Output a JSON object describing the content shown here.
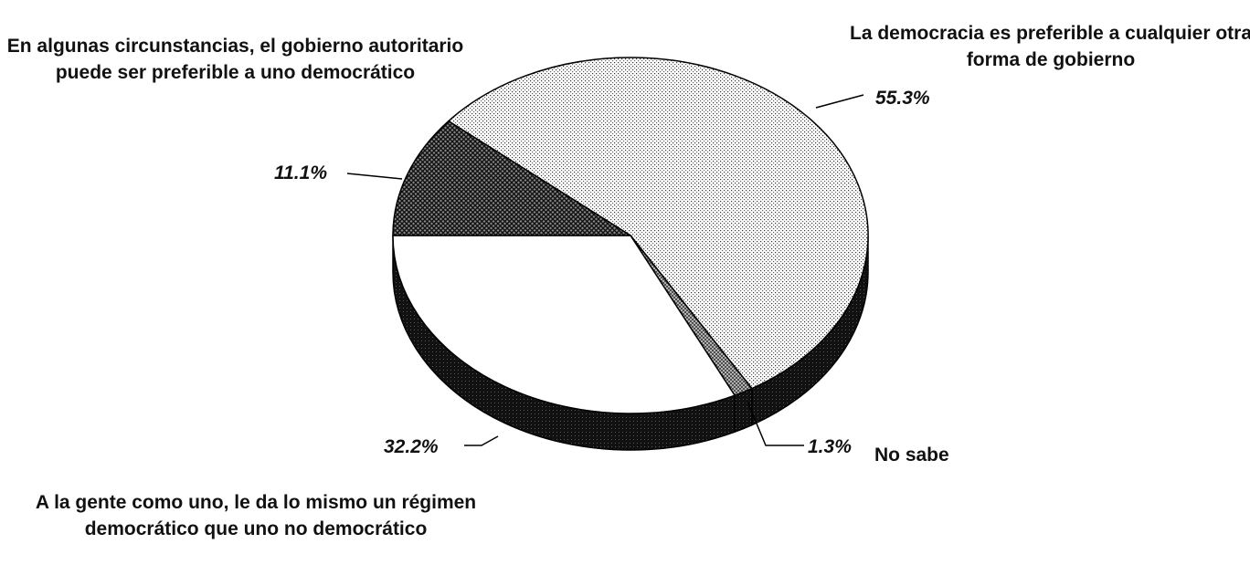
{
  "chart_data": {
    "type": "pie",
    "categories": [
      "La democracia es preferible a cualquier otra forma de gobierno",
      "No sabe",
      "A la gente como uno, le da lo mismo un régimen democrático que uno no democrático",
      "En algunas circunstancias, el gobierno autoritario puede ser preferible a uno democrático"
    ],
    "values": [
      55.3,
      1.3,
      32.2,
      11.1
    ],
    "value_labels": [
      "55.3%",
      "1.3%",
      "32.2%",
      "11.1%"
    ]
  }
}
